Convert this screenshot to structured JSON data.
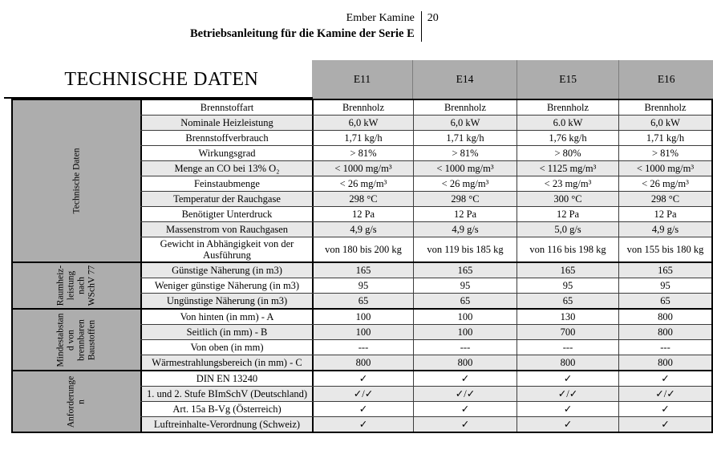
{
  "page_header": {
    "brand": "Ember Kamine",
    "page_number": "20",
    "title": "Betriebsanleitung für die Kamine der Serie E"
  },
  "table": {
    "title": "TECHNISCHE DATEN",
    "columns": [
      "E11",
      "E14",
      "E15",
      "E16"
    ],
    "colors": {
      "header_bg": "#adadad",
      "sidebar_bg": "#adadad",
      "stripe_bg": "#e8e8e8",
      "border": "#000000"
    },
    "sections": [
      {
        "label": "Technische Daten",
        "rows": [
          {
            "label": "Brennstoffart",
            "shaded": false,
            "values": [
              "Brennholz",
              "Brennholz",
              "Brennholz",
              "Brennholz"
            ]
          },
          {
            "label": "Nominale Heizleistung",
            "shaded": true,
            "values": [
              "6,0 kW",
              "6,0 kW",
              "6.0 kW",
              "6,0 kW"
            ]
          },
          {
            "label": "Brennstoffverbrauch",
            "shaded": false,
            "values": [
              "1,71 kg/h",
              "1,71 kg/h",
              "1,76 kg/h",
              "1,71 kg/h"
            ]
          },
          {
            "label": "Wirkungsgrad",
            "shaded": false,
            "values": [
              "> 81%",
              "> 81%",
              "> 80%",
              "> 81%"
            ]
          },
          {
            "label": "Menge an CO bei 13% O₂",
            "shaded": true,
            "values": [
              "< 1000 mg/m³",
              "< 1000 mg/m³",
              "< 1125 mg/m³",
              "< 1000 mg/m³"
            ]
          },
          {
            "label": "Feinstaubmenge",
            "shaded": false,
            "values": [
              "< 26 mg/m³",
              "< 26 mg/m³",
              "< 23 mg/m³",
              "< 26 mg/m³"
            ]
          },
          {
            "label": "Temperatur der Rauchgase",
            "shaded": true,
            "values": [
              "298 °C",
              "298 °C",
              "300 °C",
              "298 °C"
            ]
          },
          {
            "label": "Benötigter Unterdruck",
            "shaded": false,
            "values": [
              "12 Pa",
              "12 Pa",
              "12 Pa",
              "12 Pa"
            ]
          },
          {
            "label": "Massenstrom von Rauchgasen",
            "shaded": true,
            "values": [
              "4,9 g/s",
              "4,9 g/s",
              "5,0 g/s",
              "4,9 g/s"
            ]
          },
          {
            "label": "Gewicht in Abhängigkeit von der Ausführung",
            "shaded": false,
            "values": [
              "von 180 bis 200 kg",
              "von 119 bis 185 kg",
              "von 116 bis 198 kg",
              "von 155 bis 180 kg"
            ]
          }
        ]
      },
      {
        "label": "Raumheiz-\nleistung\nnach\nWSchV 77",
        "rows": [
          {
            "label": "Günstige Näherung (in m3)",
            "shaded": true,
            "values": [
              "165",
              "165",
              "165",
              "165"
            ]
          },
          {
            "label": "Weniger günstige Näherung (in m3)",
            "shaded": false,
            "values": [
              "95",
              "95",
              "95",
              "95"
            ]
          },
          {
            "label": "Ungünstige Näherung (in m3)",
            "shaded": true,
            "values": [
              "65",
              "65",
              "65",
              "65"
            ]
          }
        ]
      },
      {
        "label": "Mindestabstan\nd von\nbrennbaren\nBaustoffen",
        "rows": [
          {
            "label": "Von hinten (in mm) - A",
            "shaded": false,
            "values": [
              "100",
              "100",
              "130",
              "800"
            ]
          },
          {
            "label": "Seitlich (in mm) - B",
            "shaded": true,
            "values": [
              "100",
              "100",
              "700",
              "800"
            ]
          },
          {
            "label": "Von oben (in mm)",
            "shaded": false,
            "values": [
              "---",
              "---",
              "---",
              "---"
            ]
          },
          {
            "label": "Wärmestrahlungsbereich (in mm) - C",
            "shaded": true,
            "values": [
              "800",
              "800",
              "800",
              "800"
            ]
          }
        ]
      },
      {
        "label": "Anforderunge\nn",
        "rows": [
          {
            "label": "DIN EN 13240",
            "shaded": false,
            "values": [
              "✓",
              "✓",
              "✓",
              "✓"
            ]
          },
          {
            "label": "1. und 2. Stufe BImSchV (Deutschland)",
            "shaded": true,
            "values": [
              "✓/✓",
              "✓/✓",
              "✓/✓",
              "✓/✓"
            ]
          },
          {
            "label": "Art. 15a B-Vg (Österreich)",
            "shaded": false,
            "values": [
              "✓",
              "✓",
              "✓",
              "✓"
            ]
          },
          {
            "label": "Luftreinhalte-Verordnung (Schweiz)",
            "shaded": true,
            "values": [
              "✓",
              "✓",
              "✓",
              "✓"
            ]
          }
        ]
      }
    ]
  }
}
